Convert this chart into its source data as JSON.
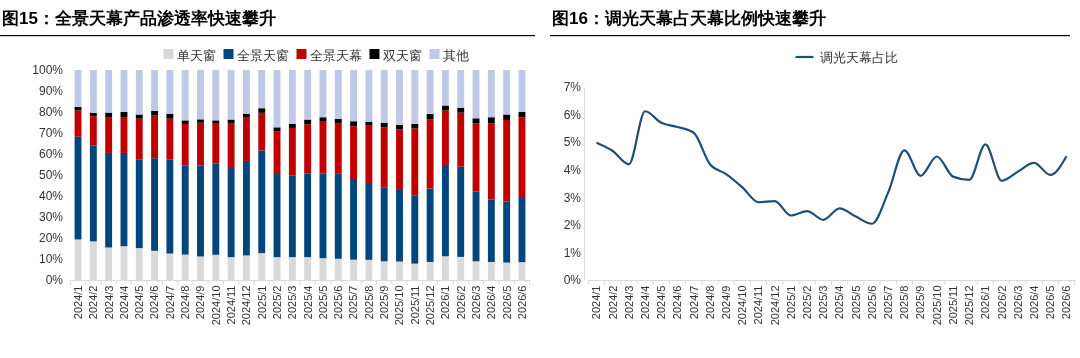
{
  "chart_data": [
    {
      "type": "bar",
      "title": "图15：全景天幕产品渗透率快速攀升",
      "stacked": true,
      "legend": "top",
      "categories": [
        "2024/1",
        "2024/2",
        "2024/3",
        "2024/4",
        "2024/5",
        "2024/6",
        "2024/7",
        "2024/8",
        "2024/9",
        "2024/10",
        "2024/11",
        "2024/12",
        "2025/1",
        "2025/2",
        "2025/3",
        "2025/4",
        "2025/5",
        "2025/6",
        "2025/7",
        "2025/8",
        "2025/9",
        "2025/10",
        "2025/11",
        "2025/12",
        "2026/1",
        "2026/2",
        "2026/3",
        "2026/4",
        "2026/5",
        "2026/6"
      ],
      "ylim": [
        0,
        100
      ],
      "yticks": [
        {
          "value": 0,
          "label": "0%"
        },
        {
          "value": 10,
          "label": "10%"
        },
        {
          "value": 20,
          "label": "20%"
        },
        {
          "value": 30,
          "label": "30%"
        },
        {
          "value": 40,
          "label": "40%"
        },
        {
          "value": 50,
          "label": "50%"
        },
        {
          "value": 60,
          "label": "60%"
        },
        {
          "value": 70,
          "label": "70%"
        },
        {
          "value": 80,
          "label": "80%"
        },
        {
          "value": 90,
          "label": "90%"
        },
        {
          "value": 100,
          "label": "100%"
        }
      ],
      "series": [
        {
          "name": "单天窗",
          "color": "#d9d9d9",
          "values": [
            19.3,
            18.4,
            15.5,
            16.1,
            15.2,
            13.9,
            12.6,
            12.1,
            11.2,
            12.0,
            10.9,
            11.7,
            12.8,
            10.9,
            10.9,
            10.9,
            10.4,
            10.1,
            9.7,
            9.6,
            8.9,
            8.8,
            7.8,
            8.6,
            11.3,
            11.0,
            8.9,
            8.6,
            8.3,
            8.5
          ]
        },
        {
          "name": "全景天窗",
          "color": "#00457c",
          "values": [
            48.9,
            45.7,
            45.0,
            44.4,
            42.3,
            44.1,
            44.7,
            42.5,
            43.4,
            43.6,
            42.9,
            45.0,
            48.9,
            39.6,
            38.8,
            39.9,
            40.2,
            40.5,
            38.4,
            36.6,
            35.3,
            34.5,
            32.3,
            35.0,
            43.5,
            43.0,
            33.3,
            29.7,
            29.1,
            31.0
          ]
        },
        {
          "name": "全景天幕",
          "color": "#c00000",
          "values": [
            12.5,
            13.9,
            17.1,
            17.1,
            19.3,
            20.4,
            19.5,
            19.7,
            20.3,
            18.8,
            21.0,
            20.6,
            17.9,
            20.3,
            22.7,
            23.3,
            24.8,
            24.2,
            25.1,
            27.3,
            28.5,
            28.4,
            32.1,
            32.9,
            25.9,
            25.7,
            32.4,
            36.3,
            38.8,
            38.0
          ]
        },
        {
          "name": "双天窗",
          "color": "#000000",
          "values": [
            1.7,
            1.6,
            2.1,
            2.4,
            2.0,
            2.1,
            2.3,
            1.7,
            1.6,
            1.6,
            1.6,
            1.9,
            2.2,
            1.9,
            2.0,
            2.3,
            2.1,
            2.0,
            2.4,
            1.9,
            2.1,
            2.1,
            2.2,
            2.6,
            2.4,
            2.2,
            2.4,
            2.9,
            2.6,
            2.5
          ]
        },
        {
          "name": "其他",
          "color": "#bfc8e6",
          "values": [
            17.6,
            20.4,
            20.3,
            20.0,
            21.2,
            19.5,
            20.9,
            24.0,
            23.5,
            24.0,
            23.6,
            20.8,
            18.2,
            27.3,
            25.6,
            23.6,
            22.5,
            23.2,
            24.4,
            24.6,
            25.2,
            26.2,
            25.6,
            20.9,
            16.9,
            18.1,
            23.0,
            22.5,
            21.2,
            20.0
          ]
        }
      ]
    },
    {
      "type": "line",
      "title": "图16：调光天幕占天幕比例快速攀升",
      "legend": "top",
      "categories": [
        "2024/1",
        "2024/2",
        "2024/3",
        "2024/4",
        "2024/5",
        "2024/6",
        "2024/7",
        "2024/8",
        "2024/9",
        "2024/10",
        "2024/11",
        "2024/12",
        "2025/1",
        "2025/2",
        "2025/3",
        "2025/4",
        "2025/5",
        "2025/6",
        "2025/7",
        "2025/8",
        "2025/9",
        "2025/10",
        "2025/11",
        "2025/12",
        "2026/1",
        "2026/2",
        "2026/3",
        "2026/4",
        "2026/5",
        "2026/6"
      ],
      "ylim": [
        0,
        7
      ],
      "yticks": [
        {
          "value": 0,
          "label": "0%"
        },
        {
          "value": 1,
          "label": "1%"
        },
        {
          "value": 2,
          "label": "2%"
        },
        {
          "value": 3,
          "label": "3%"
        },
        {
          "value": 4,
          "label": "4%"
        },
        {
          "value": 5,
          "label": "5%"
        },
        {
          "value": 6,
          "label": "6%"
        },
        {
          "value": 7,
          "label": "7%"
        }
      ],
      "series": [
        {
          "name": "调光天幕占比",
          "color": "#1f4e79",
          "values": [
            4.98,
            4.68,
            4.2,
            6.12,
            5.7,
            5.55,
            5.34,
            4.2,
            3.84,
            3.36,
            2.82,
            2.86,
            2.34,
            2.5,
            2.18,
            2.6,
            2.3,
            2.04,
            3.18,
            4.7,
            3.78,
            4.48,
            3.75,
            3.63,
            4.92,
            3.6,
            3.93,
            4.25,
            3.81,
            4.49
          ]
        }
      ]
    }
  ]
}
